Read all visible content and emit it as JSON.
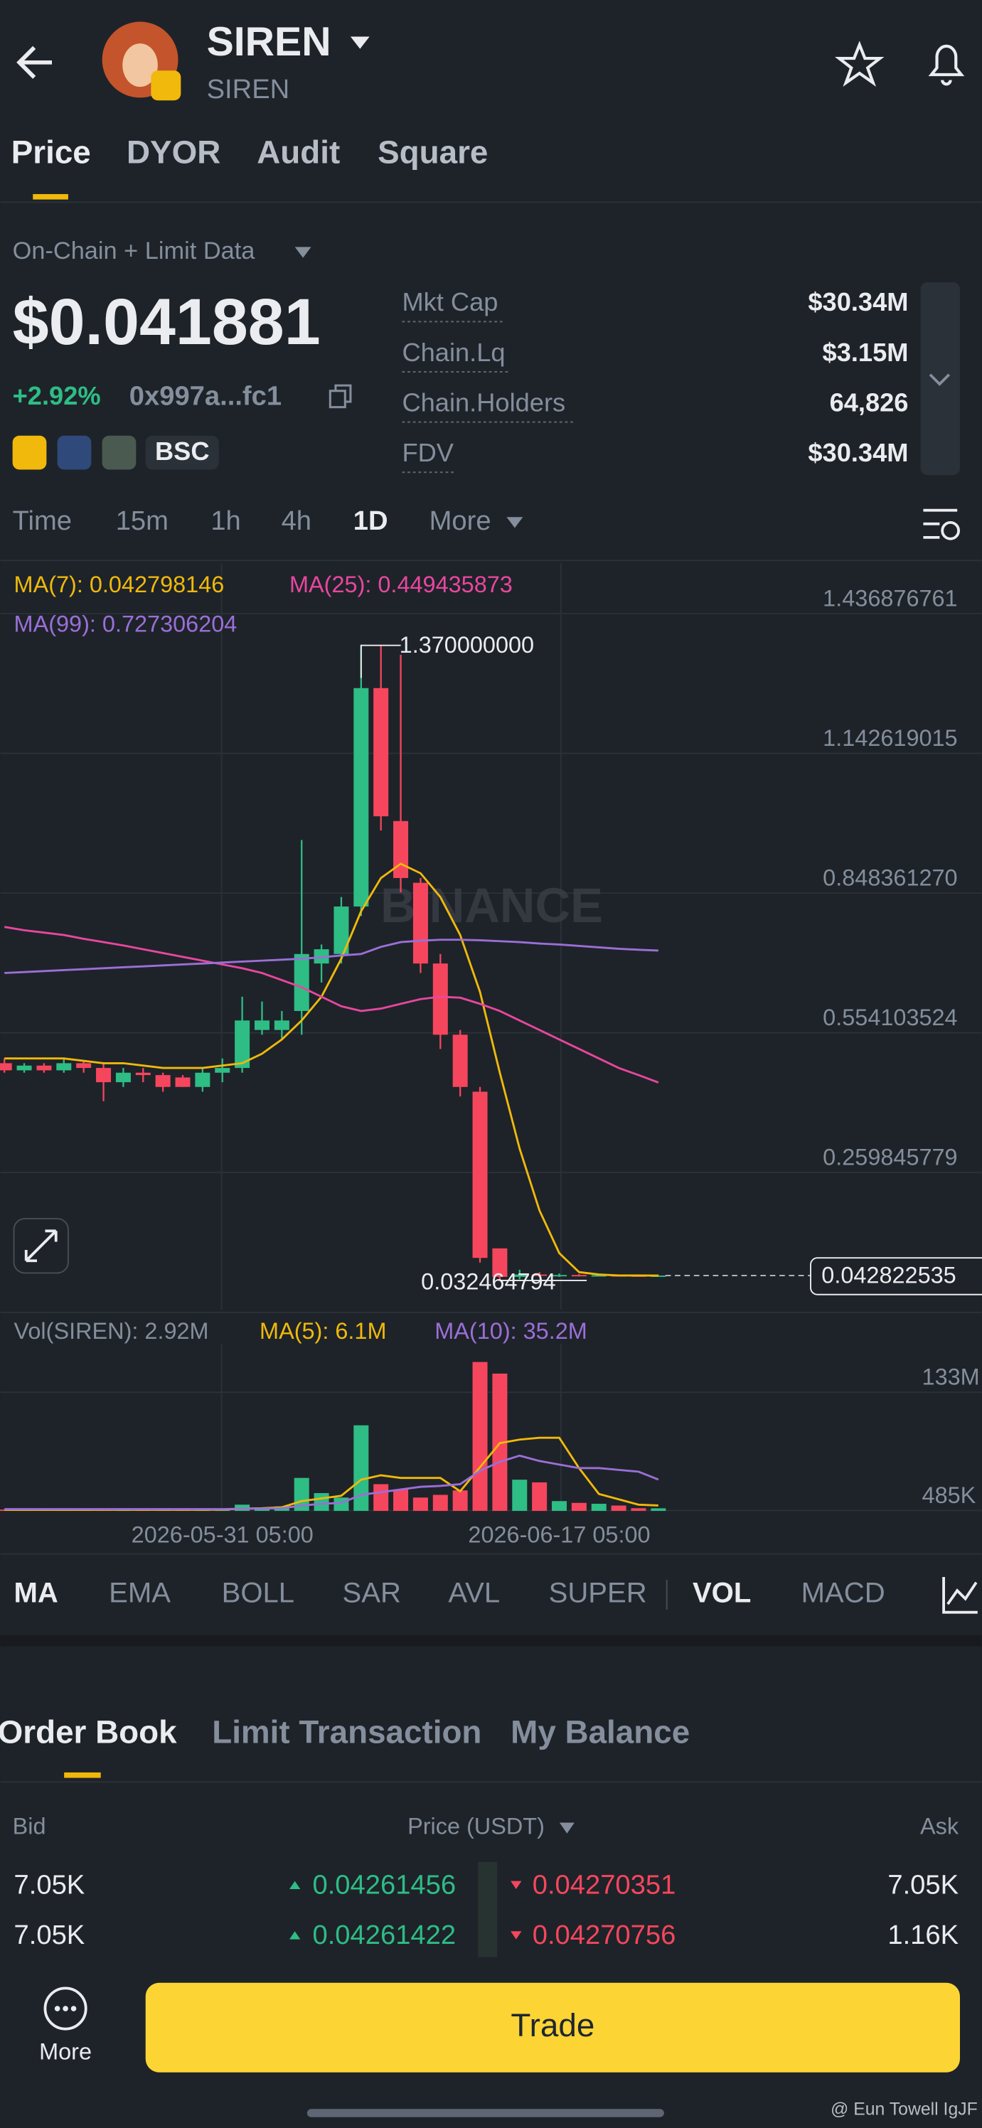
{
  "header": {
    "title": "SIREN",
    "subtitle": "SIREN"
  },
  "tabs": [
    "Price",
    "DYOR",
    "Audit",
    "Square"
  ],
  "data_source": "On-Chain + Limit Data",
  "price": "$0.041881",
  "change": "+2.92%",
  "address": "0x997a...fc1",
  "chain": "BSC",
  "stats": [
    {
      "label": "Mkt Cap",
      "value": "$30.34M"
    },
    {
      "label": "Chain.Lq",
      "value": "$3.15M"
    },
    {
      "label": "Chain.Holders",
      "value": "64,826"
    },
    {
      "label": "FDV",
      "value": "$30.34M"
    }
  ],
  "timeframes": [
    "Time",
    "15m",
    "1h",
    "4h",
    "1D",
    "More"
  ],
  "chart_data": [
    {
      "type": "candlestick",
      "watermark": "BINANCE",
      "up_color": "#2ebd85",
      "down_color": "#f6465d",
      "categories": [
        null,
        null,
        null,
        null,
        null,
        null,
        null,
        null,
        null,
        null,
        null,
        "2026-05-31 05:00",
        null,
        null,
        null,
        null,
        null,
        null,
        null,
        null,
        null,
        null,
        null,
        null,
        null,
        null,
        null,
        null,
        "2026-06-17 05:00",
        null,
        null,
        null,
        null,
        null
      ],
      "open": [
        0.49,
        0.475,
        0.485,
        0.475,
        0.49,
        0.48,
        0.45,
        0.47,
        0.465,
        0.46,
        0.44,
        0.47,
        0.48,
        0.56,
        0.56,
        0.6,
        0.7,
        0.72,
        0.82,
        1.28,
        1.0,
        0.87,
        0.7,
        0.55,
        0.43,
        0.1,
        0.04,
        0.045,
        0.043,
        0.044,
        0.043,
        0.0435,
        0.043,
        0.0425
      ],
      "high": [
        0.5,
        0.49,
        0.49,
        0.5,
        0.495,
        0.49,
        0.48,
        0.48,
        0.47,
        0.465,
        0.48,
        0.5,
        0.63,
        0.62,
        0.6,
        0.96,
        0.74,
        0.84,
        1.37,
        1.37,
        1.35,
        0.88,
        0.72,
        0.56,
        0.44,
        0.1,
        0.055,
        0.05,
        0.047,
        0.046,
        0.045,
        0.045,
        0.044,
        0.044
      ],
      "low": [
        0.47,
        0.47,
        0.47,
        0.47,
        0.47,
        0.41,
        0.44,
        0.45,
        0.43,
        0.44,
        0.43,
        0.45,
        0.47,
        0.55,
        0.54,
        0.55,
        0.66,
        0.7,
        0.8,
        0.98,
        0.85,
        0.68,
        0.52,
        0.42,
        0.07,
        0.032464794,
        0.035,
        0.04,
        0.04,
        0.041,
        0.041,
        0.041,
        0.041,
        0.042
      ],
      "close": [
        0.475,
        0.485,
        0.475,
        0.49,
        0.48,
        0.45,
        0.47,
        0.465,
        0.44,
        0.44,
        0.47,
        0.48,
        0.58,
        0.58,
        0.58,
        0.72,
        0.73,
        0.82,
        1.28,
        1.01,
        0.88,
        0.7,
        0.55,
        0.44,
        0.08,
        0.04,
        0.045,
        0.043,
        0.044,
        0.043,
        0.0435,
        0.043,
        0.0425,
        0.042822535
      ],
      "series": [
        {
          "name": "MA(7): 0.042798146",
          "color": "#f0b90b",
          "values": [
            0.5,
            0.5,
            0.5,
            0.5,
            0.495,
            0.49,
            0.49,
            0.485,
            0.48,
            0.48,
            0.48,
            0.485,
            0.49,
            0.51,
            0.54,
            0.58,
            0.63,
            0.71,
            0.81,
            0.88,
            0.91,
            0.89,
            0.84,
            0.76,
            0.64,
            0.47,
            0.31,
            0.18,
            0.09,
            0.05,
            0.045,
            0.043,
            0.043,
            0.042798146
          ]
        },
        {
          "name": "MA(25): 0.449435873",
          "color": "#e8479f",
          "values": [
            0.777,
            0.77,
            0.765,
            0.76,
            0.752,
            0.745,
            0.738,
            0.73,
            0.722,
            0.714,
            0.706,
            0.698,
            0.69,
            0.68,
            0.665,
            0.65,
            0.63,
            0.61,
            0.6,
            0.605,
            0.615,
            0.625,
            0.63,
            0.628,
            0.615,
            0.6,
            0.58,
            0.56,
            0.54,
            0.52,
            0.5,
            0.48,
            0.465,
            0.449435873
          ]
        },
        {
          "name": "MA(99): 0.727306204",
          "color": "#9b6fd8",
          "values": [
            0.68,
            0.682,
            0.684,
            0.686,
            0.688,
            0.69,
            0.692,
            0.694,
            0.696,
            0.698,
            0.7,
            0.702,
            0.704,
            0.706,
            0.708,
            0.71,
            0.713,
            0.717,
            0.72,
            0.735,
            0.745,
            0.748,
            0.75,
            0.75,
            0.749,
            0.747,
            0.745,
            0.742,
            0.74,
            0.737,
            0.734,
            0.731,
            0.729,
            0.727306204
          ]
        }
      ],
      "ylim": [
        -0.029,
        1.543
      ],
      "yticks": [
        1.436876761,
        1.142619015,
        {
          "value": 0.84836127,
          "label": "0.848361270"
        },
        0.554103524,
        0.259845779
      ],
      "max_label": {
        "value": 1.37,
        "label": "1.370000000"
      },
      "min_label": 0.032464794,
      "last_price": 0.042822535
    },
    {
      "type": "bar",
      "title": "Vol(SIREN): 2.92M",
      "values": [
        1.5,
        1,
        1.2,
        1,
        1.3,
        1.8,
        1,
        1.2,
        1.5,
        1,
        1.6,
        2,
        7,
        4,
        5,
        37,
        20,
        15,
        96,
        30,
        24,
        15,
        18,
        23,
        167,
        154,
        35,
        32,
        11,
        9,
        8,
        6,
        3,
        2.92
      ],
      "series": [
        {
          "name": "MA(5): 6.1M",
          "color": "#f0b90b",
          "values": [
            1.2,
            1.2,
            1.2,
            1.2,
            1.2,
            1.3,
            1.3,
            1.3,
            1.3,
            1.3,
            1.3,
            1.5,
            2.5,
            3,
            4,
            11,
            14,
            17,
            35,
            40,
            37,
            37,
            37,
            22,
            49,
            76,
            80,
            82,
            82,
            48,
            19,
            13,
            7,
            6.1
          ]
        },
        {
          "name": "MA(10): 35.2M",
          "color": "#9b6fd8",
          "values": [
            2,
            2,
            2,
            2,
            2,
            2,
            2,
            2,
            2,
            2,
            2,
            2,
            2.5,
            2.6,
            3,
            6,
            8,
            9,
            18,
            21,
            24,
            27,
            28,
            30,
            45,
            55,
            62,
            56,
            52,
            48,
            48,
            46,
            44,
            35.2
          ]
        }
      ],
      "ylim": [
        0,
        170
      ],
      "yticks": [
        {
          "value": 133,
          "label": "133M"
        },
        {
          "value": 0.485,
          "label": "485K"
        }
      ]
    }
  ],
  "indicators": [
    "MA",
    "EMA",
    "BOLL",
    "SAR",
    "AVL",
    "SUPER",
    "VOL",
    "MACD"
  ],
  "order_book": {
    "tabs": [
      "Order Book",
      "Limit Transaction",
      "My Balance"
    ],
    "columns": [
      "Bid",
      "Price (USDT)",
      "Ask"
    ],
    "rows": [
      [
        "7.05K",
        "0.04261456",
        "0.04270351",
        "7.05K"
      ],
      [
        "7.05K",
        "0.04261422",
        "0.04270756",
        "1.16K"
      ]
    ]
  },
  "footer": {
    "more": "More",
    "trade": "Trade"
  },
  "watermark": "@ Eun Towell IgJF"
}
